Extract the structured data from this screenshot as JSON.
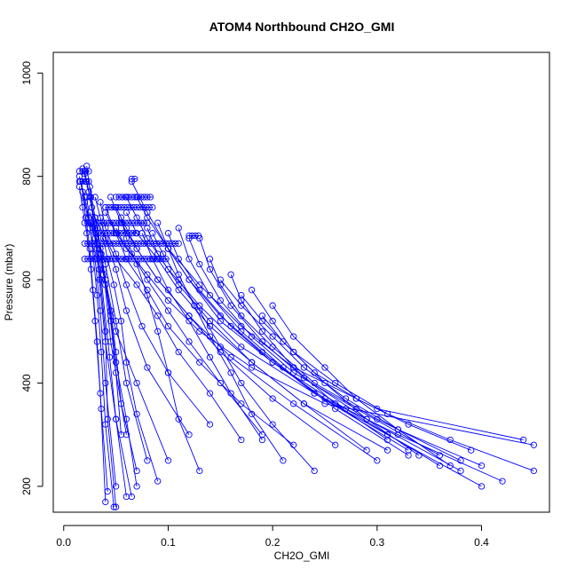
{
  "chart_data": {
    "type": "line",
    "title": "ATOM4 Northbound CH2O_GMI",
    "xlabel": "CH2O_GMI",
    "ylabel": "Pressure (mbar)",
    "xlim": [
      -0.01,
      0.465
    ],
    "ylim": [
      1040,
      150
    ],
    "y_reversed": true,
    "grid": false,
    "legend": "none",
    "marker": "open-circle",
    "color": "#0000ff",
    "x_ticks": [
      0.0,
      0.1,
      0.2,
      0.3,
      0.4
    ],
    "x_tick_labels": [
      "0.0",
      "0.1",
      "0.2",
      "0.3",
      "0.4"
    ],
    "y_ticks": [
      200,
      400,
      600,
      800,
      1000
    ],
    "y_tick_labels": [
      "200",
      "400",
      "600",
      "800",
      "1000"
    ],
    "series": [
      {
        "x": [
          0.015,
          0.02,
          0.024,
          0.03,
          0.034,
          0.04,
          0.05,
          0.06
        ],
        "y": [
          800,
          760,
          720,
          680,
          600,
          480,
          330,
          180
        ]
      },
      {
        "x": [
          0.018,
          0.022,
          0.027,
          0.032,
          0.038,
          0.045,
          0.06
        ],
        "y": [
          815,
          790,
          740,
          700,
          620,
          480,
          300
        ]
      },
      {
        "x": [
          0.02,
          0.024,
          0.03,
          0.04,
          0.05,
          0.06,
          0.08
        ],
        "y": [
          810,
          770,
          700,
          630,
          520,
          400,
          250
        ]
      },
      {
        "x": [
          0.016,
          0.02,
          0.025,
          0.03,
          0.035,
          0.04,
          0.05
        ],
        "y": [
          790,
          750,
          700,
          640,
          540,
          400,
          200
        ]
      },
      {
        "x": [
          0.022,
          0.026,
          0.03,
          0.036,
          0.044,
          0.05,
          0.065
        ],
        "y": [
          820,
          760,
          690,
          600,
          450,
          330,
          180
        ]
      },
      {
        "x": [
          0.025,
          0.03,
          0.035,
          0.04,
          0.05,
          0.07,
          0.1
        ],
        "y": [
          780,
          720,
          660,
          600,
          500,
          400,
          250
        ]
      },
      {
        "x": [
          0.02,
          0.025,
          0.03,
          0.034,
          0.04,
          0.042,
          0.05
        ],
        "y": [
          805,
          760,
          700,
          620,
          500,
          330,
          160
        ]
      },
      {
        "x": [
          0.03,
          0.035,
          0.04,
          0.05,
          0.06,
          0.08,
          0.12
        ],
        "y": [
          760,
          720,
          680,
          620,
          540,
          430,
          300
        ]
      },
      {
        "x": [
          0.035,
          0.04,
          0.05,
          0.06,
          0.075,
          0.1,
          0.14
        ],
        "y": [
          750,
          700,
          650,
          590,
          510,
          420,
          320
        ]
      },
      {
        "x": [
          0.04,
          0.05,
          0.06,
          0.08,
          0.1,
          0.13,
          0.17,
          0.22
        ],
        "y": [
          740,
          690,
          640,
          580,
          510,
          440,
          360,
          280
        ]
      },
      {
        "x": [
          0.05,
          0.06,
          0.07,
          0.09,
          0.12,
          0.16,
          0.22,
          0.3
        ],
        "y": [
          740,
          700,
          660,
          600,
          530,
          450,
          360,
          250
        ]
      },
      {
        "x": [
          0.06,
          0.07,
          0.08,
          0.1,
          0.13,
          0.17,
          0.24,
          0.33
        ],
        "y": [
          760,
          720,
          680,
          620,
          550,
          470,
          380,
          270
        ]
      },
      {
        "x": [
          0.07,
          0.08,
          0.1,
          0.12,
          0.15,
          0.2,
          0.27,
          0.36
        ],
        "y": [
          760,
          720,
          660,
          600,
          520,
          440,
          350,
          240
        ]
      },
      {
        "x": [
          0.065,
          0.08,
          0.1,
          0.13,
          0.17,
          0.22,
          0.3,
          0.44
        ],
        "y": [
          790,
          730,
          660,
          590,
          510,
          430,
          350,
          290
        ]
      },
      {
        "x": [
          0.05,
          0.06,
          0.08,
          0.1,
          0.13,
          0.18,
          0.25,
          0.45
        ],
        "y": [
          700,
          660,
          610,
          560,
          500,
          430,
          360,
          280
        ]
      },
      {
        "x": [
          0.08,
          0.09,
          0.11,
          0.14,
          0.18,
          0.23,
          0.31
        ],
        "y": [
          700,
          650,
          590,
          520,
          440,
          360,
          270
        ]
      },
      {
        "x": [
          0.1,
          0.11,
          0.13,
          0.16,
          0.2,
          0.25,
          0.32,
          0.42
        ],
        "y": [
          690,
          640,
          580,
          510,
          440,
          370,
          300,
          210
        ]
      },
      {
        "x": [
          0.12,
          0.13,
          0.15,
          0.18,
          0.22,
          0.28,
          0.36
        ],
        "y": [
          680,
          630,
          560,
          490,
          420,
          350,
          260
        ]
      },
      {
        "x": [
          0.13,
          0.14,
          0.16,
          0.19,
          0.23,
          0.29,
          0.38
        ],
        "y": [
          680,
          620,
          550,
          480,
          410,
          330,
          230
        ]
      },
      {
        "x": [
          0.04,
          0.05,
          0.065,
          0.08,
          0.1,
          0.12,
          0.15,
          0.19
        ],
        "y": [
          730,
          690,
          650,
          600,
          540,
          480,
          400,
          300
        ]
      },
      {
        "x": [
          0.03,
          0.04,
          0.05,
          0.07,
          0.09,
          0.11,
          0.14,
          0.17
        ],
        "y": [
          720,
          680,
          640,
          590,
          530,
          460,
          380,
          290
        ]
      },
      {
        "x": [
          0.045,
          0.055,
          0.07,
          0.09,
          0.12,
          0.15,
          0.2,
          0.26
        ],
        "y": [
          760,
          710,
          660,
          600,
          530,
          460,
          370,
          280
        ]
      },
      {
        "x": [
          0.06,
          0.07,
          0.09,
          0.11,
          0.14,
          0.18,
          0.23,
          0.29
        ],
        "y": [
          730,
          690,
          640,
          580,
          510,
          440,
          360,
          270
        ]
      },
      {
        "x": [
          0.09,
          0.1,
          0.12,
          0.15,
          0.19,
          0.24,
          0.31,
          0.4
        ],
        "y": [
          710,
          660,
          600,
          530,
          460,
          380,
          300,
          200
        ]
      },
      {
        "x": [
          0.11,
          0.12,
          0.14,
          0.17,
          0.21,
          0.26,
          0.33
        ],
        "y": [
          700,
          640,
          570,
          500,
          430,
          350,
          260
        ]
      },
      {
        "x": [
          0.14,
          0.15,
          0.17,
          0.2,
          0.24,
          0.3,
          0.38
        ],
        "y": [
          640,
          590,
          530,
          470,
          400,
          330,
          250
        ]
      },
      {
        "x": [
          0.16,
          0.17,
          0.19,
          0.22,
          0.26,
          0.31
        ],
        "y": [
          610,
          560,
          500,
          430,
          360,
          290
        ]
      },
      {
        "x": [
          0.18,
          0.2,
          0.22,
          0.25,
          0.29,
          0.34
        ],
        "y": [
          580,
          520,
          460,
          400,
          330,
          260
        ]
      },
      {
        "x": [
          0.2,
          0.22,
          0.25,
          0.28,
          0.32,
          0.37
        ],
        "y": [
          550,
          490,
          430,
          370,
          310,
          240
        ]
      },
      {
        "x": [
          0.075,
          0.085,
          0.1,
          0.12,
          0.14,
          0.16,
          0.19
        ],
        "y": [
          690,
          640,
          580,
          520,
          450,
          380,
          290
        ]
      },
      {
        "x": [
          0.025,
          0.03,
          0.035,
          0.04,
          0.045,
          0.05,
          0.055
        ],
        "y": [
          730,
          690,
          650,
          590,
          520,
          420,
          300
        ]
      },
      {
        "x": [
          0.028,
          0.032,
          0.038,
          0.045,
          0.05,
          0.055,
          0.07
        ],
        "y": [
          700,
          660,
          610,
          540,
          460,
          360,
          230
        ]
      },
      {
        "x": [
          0.033,
          0.036,
          0.04,
          0.045,
          0.05,
          0.06,
          0.07
        ],
        "y": [
          690,
          650,
          600,
          530,
          440,
          330,
          200
        ]
      },
      {
        "x": [
          0.038,
          0.042,
          0.048,
          0.055,
          0.06,
          0.07,
          0.09
        ],
        "y": [
          680,
          640,
          590,
          520,
          440,
          340,
          210
        ]
      },
      {
        "x": [
          0.055,
          0.06,
          0.07,
          0.08,
          0.09,
          0.1,
          0.11,
          0.13
        ],
        "y": [
          720,
          680,
          630,
          570,
          500,
          420,
          330,
          230
        ]
      },
      {
        "x": [
          0.085,
          0.095,
          0.11,
          0.13,
          0.15,
          0.17,
          0.2,
          0.24
        ],
        "y": [
          690,
          650,
          600,
          540,
          470,
          400,
          320,
          230
        ]
      },
      {
        "x": [
          0.1,
          0.11,
          0.125,
          0.14,
          0.16,
          0.18,
          0.21
        ],
        "y": [
          660,
          610,
          550,
          490,
          420,
          340,
          250
        ]
      },
      {
        "x": [
          0.015,
          0.018,
          0.022,
          0.026,
          0.03,
          0.035,
          0.04
        ],
        "y": [
          780,
          740,
          690,
          620,
          520,
          380,
          170
        ]
      },
      {
        "x": [
          0.018,
          0.021,
          0.025,
          0.028,
          0.032,
          0.036,
          0.042
        ],
        "y": [
          770,
          720,
          660,
          580,
          480,
          350,
          190
        ]
      },
      {
        "x": [
          0.022,
          0.025,
          0.028,
          0.032,
          0.036,
          0.04,
          0.048
        ],
        "y": [
          760,
          710,
          650,
          570,
          460,
          320,
          160
        ]
      },
      {
        "x": [
          0.15,
          0.17,
          0.2,
          0.23,
          0.27,
          0.32,
          0.4
        ],
        "y": [
          600,
          550,
          490,
          430,
          370,
          310,
          240
        ]
      },
      {
        "x": [
          0.17,
          0.19,
          0.22,
          0.26,
          0.31,
          0.37,
          0.45
        ],
        "y": [
          570,
          520,
          460,
          400,
          340,
          290,
          230
        ]
      },
      {
        "x": [
          0.19,
          0.21,
          0.24,
          0.28,
          0.33,
          0.39
        ],
        "y": [
          530,
          480,
          420,
          370,
          320,
          270
        ]
      }
    ],
    "levels": [
      {
        "y": 640,
        "x": [
          0.02,
          0.1
        ]
      },
      {
        "y": 670,
        "x": [
          0.02,
          0.11
        ]
      },
      {
        "y": 710,
        "x": [
          0.02,
          0.08
        ]
      },
      {
        "y": 740,
        "x": [
          0.04,
          0.085
        ]
      },
      {
        "y": 760,
        "x": [
          0.05,
          0.085
        ]
      },
      {
        "y": 690,
        "x": [
          0.03,
          0.07
        ]
      },
      {
        "y": 810,
        "x": [
          0.015,
          0.025
        ]
      },
      {
        "y": 790,
        "x": [
          0.015,
          0.025
        ]
      },
      {
        "y": 685,
        "x": [
          0.12,
          0.13
        ]
      },
      {
        "y": 795,
        "x": [
          0.065,
          0.07
        ]
      }
    ]
  }
}
